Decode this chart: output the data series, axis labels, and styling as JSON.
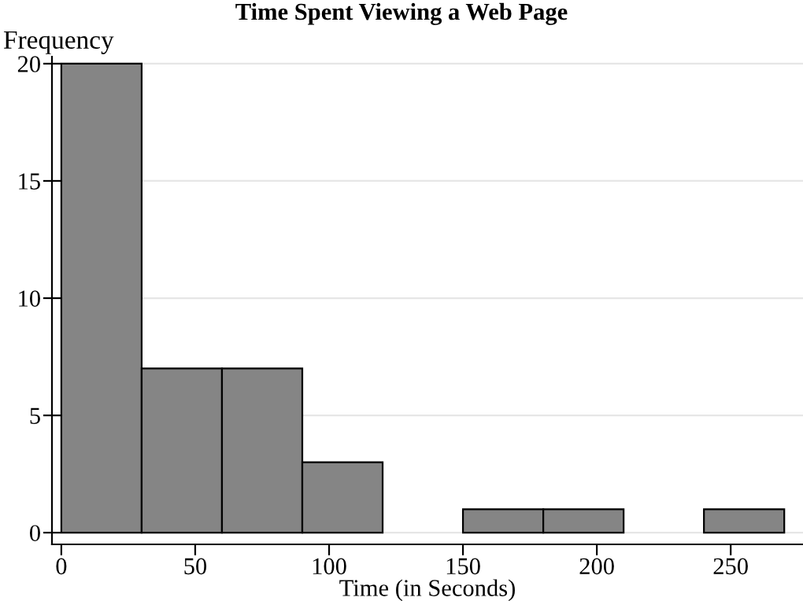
{
  "chart_data": {
    "type": "histogram",
    "title": "Time Spent Viewing a Web Page",
    "xlabel": "Time (in Seconds)",
    "ylabel": "Frequency",
    "bins": [
      0,
      30,
      60,
      90,
      120,
      150,
      180,
      210,
      240,
      270
    ],
    "values": [
      20,
      7,
      7,
      3,
      0,
      1,
      1,
      0,
      1
    ],
    "color": "#858585",
    "xlim": [
      -3.5,
      277
    ],
    "ylim": [
      -0.5,
      20.3
    ],
    "xticks": [
      0,
      50,
      100,
      150,
      200,
      250
    ],
    "yticks": [
      0,
      5,
      10,
      15,
      20
    ],
    "grid": "y",
    "legend": false
  }
}
